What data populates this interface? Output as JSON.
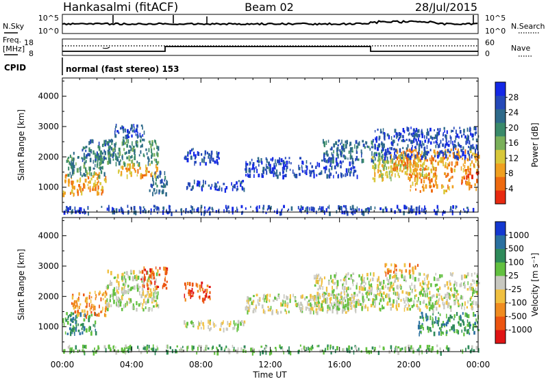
{
  "header": {
    "station": "Hankasalmi (fitACF)",
    "beam": "Beam 02",
    "date": "28/Jul/2015"
  },
  "aux_panels": {
    "nsky_label": "N.Sky",
    "nsearch_label": "N.Search",
    "nsky_ticks": [
      "10^5",
      "10^0"
    ],
    "nsearch_ticks": [
      "10^5",
      "10^0"
    ],
    "freq_label": "Freq.",
    "freq_unit": "[MHz]",
    "freq_ticks": [
      "18",
      "8"
    ],
    "nave_label": "Nave",
    "nave_ticks": [
      "60",
      "0"
    ],
    "cpid_label": "CPID",
    "cpid_text": "normal (fast stereo) 153"
  },
  "colors": {
    "power_scale": [
      "#1428e6",
      "#2448b8",
      "#2e6a8a",
      "#3a8a6a",
      "#7ab05a",
      "#d8c83a",
      "#f0a020",
      "#ee6a10",
      "#e82a10"
    ],
    "velocity_scale": [
      "#1438d0",
      "#2a70a0",
      "#2e8a5a",
      "#62c040",
      "#c8c8c0",
      "#f0c040",
      "#f08c20",
      "#ec5410",
      "#e01414"
    ]
  },
  "chart_data": [
    {
      "type": "heatmap",
      "title": "",
      "ylabel": "Slant Range [km]",
      "xlabel": "Time UT",
      "x_ticks": [
        "00:00",
        "04:00",
        "08:00",
        "12:00",
        "16:00",
        "20:00",
        "00:00"
      ],
      "x_range_hours": [
        0,
        24
      ],
      "y_ticks": [
        "1000",
        "2000",
        "3000",
        "4000"
      ],
      "ylim": [
        180,
        4600
      ],
      "colorbar": {
        "label": "Power [dB]",
        "ticks": [
          "28",
          "24",
          "20",
          "16",
          "12",
          "8",
          "4"
        ],
        "range": [
          0,
          32
        ]
      },
      "regions": [
        {
          "t0": 0.0,
          "t1": 2.5,
          "r0": 800,
          "r1": 1500,
          "level": 6
        },
        {
          "t0": 0.2,
          "t1": 2.5,
          "r0": 1400,
          "r1": 2200,
          "level": 3
        },
        {
          "t0": 1.0,
          "t1": 3.0,
          "r0": 1900,
          "r1": 2600,
          "level": 2
        },
        {
          "t0": 2.5,
          "t1": 5.5,
          "r0": 1800,
          "r1": 2600,
          "level": 3
        },
        {
          "t0": 3.2,
          "t1": 5.5,
          "r0": 1400,
          "r1": 1800,
          "level": 6
        },
        {
          "t0": 3.0,
          "t1": 4.8,
          "r0": 2600,
          "r1": 3100,
          "level": 1
        },
        {
          "t0": 5.0,
          "t1": 6.0,
          "r0": 800,
          "r1": 1600,
          "level": 2
        },
        {
          "t0": 7.0,
          "t1": 10.5,
          "r0": 950,
          "r1": 1250,
          "level": 1
        },
        {
          "t0": 7.0,
          "t1": 9.0,
          "r0": 1800,
          "r1": 2300,
          "level": 1
        },
        {
          "t0": 10.5,
          "t1": 17.0,
          "r0": 1400,
          "r1": 2000,
          "level": 1
        },
        {
          "t0": 15.0,
          "t1": 18.5,
          "r0": 1900,
          "r1": 2600,
          "level": 2
        },
        {
          "t0": 17.8,
          "t1": 21.0,
          "r0": 1300,
          "r1": 2100,
          "level": 5
        },
        {
          "t0": 19.0,
          "t1": 24.0,
          "r0": 1600,
          "r1": 2300,
          "level": 6
        },
        {
          "t0": 20.0,
          "t1": 22.5,
          "r0": 900,
          "r1": 1500,
          "level": 6
        },
        {
          "t0": 23.0,
          "t1": 24.0,
          "r0": 1000,
          "r1": 1600,
          "level": 7
        },
        {
          "t0": 18.0,
          "t1": 24.0,
          "r0": 2000,
          "r1": 3000,
          "level": 1
        },
        {
          "t0": 0.0,
          "t1": 24.0,
          "r0": 190,
          "r1": 420,
          "level": 1
        }
      ]
    },
    {
      "type": "heatmap",
      "title": "",
      "ylabel": "Slant Range [km]",
      "xlabel": "Time UT",
      "x_ticks": [
        "00:00",
        "04:00",
        "08:00",
        "12:00",
        "16:00",
        "20:00",
        "00:00"
      ],
      "x_range_hours": [
        0,
        24
      ],
      "y_ticks": [
        "1000",
        "2000",
        "3000",
        "4000"
      ],
      "ylim": [
        180,
        4600
      ],
      "colorbar": {
        "label": "Velocity [m s⁻¹]",
        "ticks": [
          "1000",
          "500",
          "100",
          "25",
          "-25",
          "-100",
          "-500",
          "-1000"
        ],
        "range": [
          -1200,
          1200
        ]
      },
      "regions": [
        {
          "t0": 0.0,
          "t1": 2.0,
          "r0": 800,
          "r1": 1500,
          "level": 2
        },
        {
          "t0": 0.5,
          "t1": 2.5,
          "r0": 1400,
          "r1": 2200,
          "level": 6
        },
        {
          "t0": 2.5,
          "t1": 5.5,
          "r0": 1600,
          "r1": 2900,
          "level": 4
        },
        {
          "t0": 4.5,
          "t1": 6.0,
          "r0": 2300,
          "r1": 3000,
          "level": 7
        },
        {
          "t0": 7.0,
          "t1": 10.5,
          "r0": 950,
          "r1": 1250,
          "level": 4
        },
        {
          "t0": 7.0,
          "t1": 8.5,
          "r0": 1900,
          "r1": 2500,
          "level": 7
        },
        {
          "t0": 10.5,
          "t1": 17.0,
          "r0": 1500,
          "r1": 2100,
          "level": 4
        },
        {
          "t0": 14.5,
          "t1": 24.0,
          "r0": 1600,
          "r1": 2800,
          "level": 4
        },
        {
          "t0": 18.5,
          "t1": 20.5,
          "r0": 2800,
          "r1": 3100,
          "level": 6
        },
        {
          "t0": 20.5,
          "t1": 24.0,
          "r0": 800,
          "r1": 1500,
          "level": 2
        },
        {
          "t0": 0.0,
          "t1": 24.0,
          "r0": 190,
          "r1": 420,
          "level": 3
        }
      ]
    }
  ]
}
